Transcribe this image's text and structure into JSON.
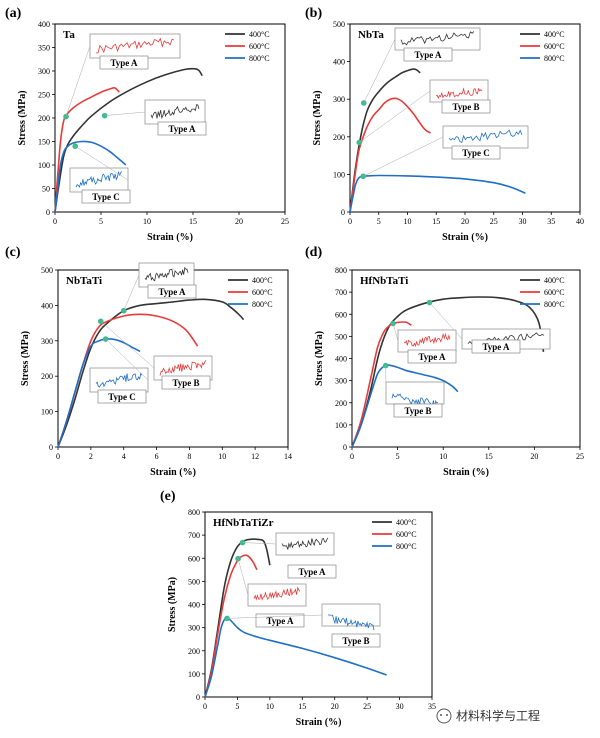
{
  "watermark": "材料科学与工程",
  "chart_data": [
    {
      "panel": "(a)",
      "title": "Ta",
      "type": "line",
      "xlabel": "Strain (%)",
      "ylabel": "Stress (MPa)",
      "xlim": [
        0,
        25
      ],
      "ylim": [
        0,
        400
      ],
      "xticks": [
        0,
        5,
        10,
        15,
        20,
        25
      ],
      "yticks": [
        0,
        50,
        100,
        150,
        200,
        250,
        300,
        350,
        400
      ],
      "legend_position": "top-right",
      "series": [
        {
          "name": "400°C",
          "color": "#333333",
          "x": [
            0,
            0.4,
            0.9,
            1.3,
            2,
            3,
            4,
            6,
            8,
            10,
            12,
            14,
            15,
            15.6,
            16
          ],
          "y": [
            0,
            55,
            115,
            140,
            162,
            185,
            205,
            235,
            258,
            277,
            292,
            303,
            305,
            302,
            290
          ]
        },
        {
          "name": "600°C",
          "color": "#e83a3a",
          "x": [
            0,
            0.3,
            0.6,
            0.9,
            1.2,
            2,
            3,
            4,
            5,
            6,
            6.5,
            7
          ],
          "y": [
            0,
            80,
            150,
            190,
            205,
            222,
            235,
            245,
            255,
            262,
            264,
            255
          ]
        },
        {
          "name": "800°C",
          "color": "#1f6fc5",
          "x": [
            0,
            0.3,
            0.6,
            1.0,
            1.4,
            2,
            3,
            4,
            5,
            6,
            6.8,
            7.7
          ],
          "y": [
            0,
            50,
            100,
            130,
            140,
            147,
            150,
            148,
            140,
            128,
            115,
            100
          ]
        }
      ],
      "markers": [
        {
          "x": 1.2,
          "y": 203
        },
        {
          "x": 5.4,
          "y": 205
        },
        {
          "x": 2.2,
          "y": 140
        }
      ],
      "annotations": [
        "Type A",
        "Type A",
        "Type C"
      ]
    },
    {
      "panel": "(b)",
      "title": "NbTa",
      "type": "line",
      "xlabel": "Strain (%)",
      "ylabel": "Stress (MPa)",
      "xlim": [
        0,
        40
      ],
      "ylim": [
        0,
        500
      ],
      "xticks": [
        0,
        5,
        10,
        15,
        20,
        25,
        30,
        35,
        40
      ],
      "yticks": [
        0,
        100,
        200,
        300,
        400,
        500
      ],
      "legend_position": "top-right",
      "series": [
        {
          "name": "400°C",
          "color": "#333333",
          "x": [
            0,
            0.8,
            1.5,
            2.2,
            3,
            4,
            5,
            6,
            7,
            8,
            9,
            10,
            11,
            11.6,
            12.2
          ],
          "y": [
            0,
            100,
            170,
            225,
            270,
            300,
            320,
            337,
            350,
            360,
            370,
            376,
            380,
            378,
            370
          ]
        },
        {
          "name": "600°C",
          "color": "#e83a3a",
          "x": [
            0,
            0.8,
            1.5,
            2.3,
            3,
            4,
            5,
            6,
            7,
            8,
            9,
            10,
            11,
            12,
            13,
            14
          ],
          "y": [
            0,
            90,
            160,
            200,
            228,
            255,
            272,
            290,
            300,
            302,
            295,
            280,
            262,
            240,
            220,
            210
          ]
        },
        {
          "name": "800°C",
          "color": "#1f6fc5",
          "x": [
            0,
            0.5,
            1,
            1.5,
            2,
            3,
            5,
            10,
            15,
            20,
            25,
            28,
            30.5
          ],
          "y": [
            0,
            40,
            75,
            90,
            95,
            96,
            97,
            96,
            93,
            88,
            78,
            66,
            50
          ]
        }
      ],
      "markers": [
        {
          "x": 2.4,
          "y": 290
        },
        {
          "x": 1.6,
          "y": 185
        },
        {
          "x": 2.3,
          "y": 95
        }
      ],
      "annotations": [
        "Type A",
        "Type B",
        "Type C"
      ]
    },
    {
      "panel": "(c)",
      "title": "NbTaTi",
      "type": "line",
      "xlabel": "Strain (%)",
      "ylabel": "Stress (MPa)",
      "xlim": [
        0,
        14
      ],
      "ylim": [
        0,
        500
      ],
      "xticks": [
        0,
        2,
        4,
        6,
        8,
        10,
        12,
        14
      ],
      "yticks": [
        0,
        100,
        200,
        300,
        400,
        500
      ],
      "legend_position": "top-right",
      "series": [
        {
          "name": "400°C",
          "color": "#333333",
          "x": [
            0,
            0.5,
            1,
            1.5,
            2,
            2.5,
            3,
            4,
            5,
            6,
            7,
            8,
            9,
            10,
            10.5,
            11,
            11.3
          ],
          "y": [
            0,
            60,
            130,
            210,
            280,
            325,
            350,
            385,
            400,
            405,
            410,
            415,
            417,
            410,
            395,
            375,
            360
          ]
        },
        {
          "name": "600°C",
          "color": "#e83a3a",
          "x": [
            0,
            0.5,
            1,
            1.5,
            2,
            2.5,
            3,
            4,
            5,
            6,
            7,
            7.8,
            8.5
          ],
          "y": [
            0,
            70,
            150,
            230,
            300,
            340,
            355,
            370,
            375,
            370,
            355,
            330,
            285
          ]
        },
        {
          "name": "800°C",
          "color": "#1f6fc5",
          "x": [
            0,
            0.5,
            1,
            1.5,
            2,
            2.5,
            3,
            3.5,
            4,
            4.5,
            5
          ],
          "y": [
            0,
            70,
            150,
            230,
            285,
            300,
            305,
            303,
            295,
            282,
            270
          ]
        }
      ],
      "markers": [
        {
          "x": 4,
          "y": 385
        },
        {
          "x": 2.6,
          "y": 355
        },
        {
          "x": 2.9,
          "y": 305
        }
      ],
      "annotations": [
        "Type A",
        "Type B",
        "Type C"
      ]
    },
    {
      "panel": "(d)",
      "title": "HfNbTaTi",
      "type": "line",
      "xlabel": "Strain (%)",
      "ylabel": "Stress (MPa)",
      "xlim": [
        0,
        25
      ],
      "ylim": [
        0,
        800
      ],
      "xticks": [
        0,
        5,
        10,
        15,
        20,
        25
      ],
      "yticks": [
        0,
        100,
        200,
        300,
        400,
        500,
        600,
        700,
        800
      ],
      "legend_position": "top-right",
      "series": [
        {
          "name": "400°C",
          "color": "#333333",
          "x": [
            0,
            1,
            2,
            3,
            4,
            5,
            6,
            8,
            10,
            12,
            14,
            16,
            18,
            19.5,
            20.5,
            21
          ],
          "y": [
            0,
            100,
            250,
            430,
            540,
            590,
            620,
            650,
            668,
            675,
            678,
            675,
            660,
            630,
            560,
            430
          ]
        },
        {
          "name": "600°C",
          "color": "#e83a3a",
          "x": [
            0,
            1,
            2,
            2.8,
            3.5,
            4,
            4.5,
            5,
            5.5,
            6,
            6.5
          ],
          "y": [
            0,
            120,
            300,
            450,
            520,
            545,
            558,
            563,
            565,
            563,
            550
          ]
        },
        {
          "name": "800°C",
          "color": "#1f6fc5",
          "x": [
            0,
            1,
            2,
            2.8,
            3.5,
            4,
            5,
            6,
            7,
            8,
            9,
            10,
            11,
            11.6
          ],
          "y": [
            0,
            100,
            230,
            330,
            365,
            370,
            360,
            345,
            335,
            325,
            315,
            300,
            275,
            250
          ]
        }
      ],
      "markers": [
        {
          "x": 8.5,
          "y": 653
        },
        {
          "x": 4.5,
          "y": 558
        },
        {
          "x": 3.7,
          "y": 368
        }
      ],
      "annotations": [
        "Type A",
        "Type A",
        "Type B"
      ]
    },
    {
      "panel": "(e)",
      "title": "HfNbTaTiZr",
      "type": "line",
      "xlabel": "Strain (%)",
      "ylabel": "Stress (MPa)",
      "xlim": [
        0,
        35
      ],
      "ylim": [
        0,
        800
      ],
      "xticks": [
        0,
        5,
        10,
        15,
        20,
        25,
        30,
        35
      ],
      "yticks": [
        0,
        100,
        200,
        300,
        400,
        500,
        600,
        700,
        800
      ],
      "legend_position": "top-right",
      "series": [
        {
          "name": "400°C",
          "color": "#333333",
          "x": [
            0,
            1,
            2,
            3,
            4,
            5,
            6,
            7,
            8,
            9,
            9.5,
            10
          ],
          "y": [
            0,
            120,
            300,
            480,
            590,
            650,
            675,
            682,
            682,
            675,
            640,
            570
          ]
        },
        {
          "name": "600°C",
          "color": "#e83a3a",
          "x": [
            0,
            1,
            2,
            3,
            4,
            5,
            5.5,
            6,
            6.5,
            7,
            7.5,
            8
          ],
          "y": [
            0,
            110,
            280,
            430,
            530,
            590,
            605,
            612,
            612,
            600,
            580,
            550
          ]
        },
        {
          "name": "800°C",
          "color": "#1f6fc5",
          "x": [
            0,
            1,
            2,
            2.5,
            3,
            3.5,
            4,
            5,
            6,
            8,
            10,
            15,
            20,
            25,
            28
          ],
          "y": [
            0,
            90,
            230,
            300,
            335,
            340,
            330,
            300,
            280,
            260,
            245,
            210,
            170,
            125,
            95
          ]
        }
      ],
      "markers": [
        {
          "x": 5.8,
          "y": 668
        },
        {
          "x": 5.1,
          "y": 598
        },
        {
          "x": 3.4,
          "y": 340
        }
      ],
      "annotations": [
        "Type A",
        "Type A",
        "Type B"
      ]
    }
  ]
}
